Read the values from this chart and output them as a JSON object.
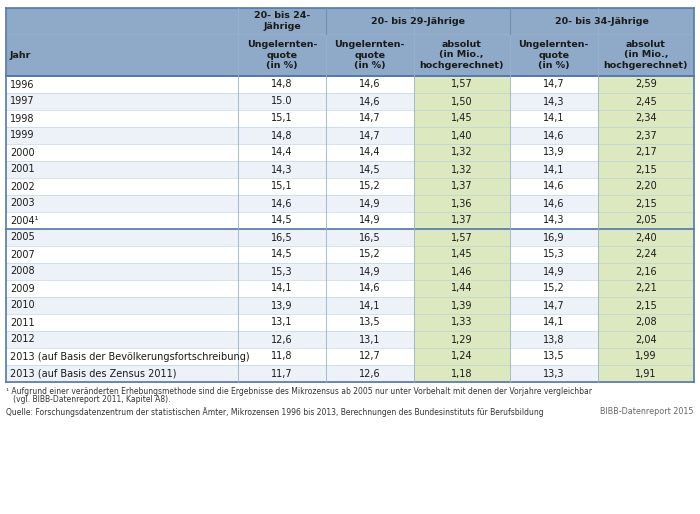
{
  "rows": [
    [
      "1996",
      "14,8",
      "14,6",
      "1,57",
      "14,7",
      "2,59"
    ],
    [
      "1997",
      "15.0",
      "14,6",
      "1,50",
      "14,3",
      "2,45"
    ],
    [
      "1998",
      "15,1",
      "14,7",
      "1,45",
      "14,1",
      "2,34"
    ],
    [
      "1999",
      "14,8",
      "14,7",
      "1,40",
      "14,6",
      "2,37"
    ],
    [
      "2000",
      "14,4",
      "14,4",
      "1,32",
      "13,9",
      "2,17"
    ],
    [
      "2001",
      "14,3",
      "14,5",
      "1,32",
      "14,1",
      "2,15"
    ],
    [
      "2002",
      "15,1",
      "15,2",
      "1,37",
      "14,6",
      "2,20"
    ],
    [
      "2003",
      "14,6",
      "14,9",
      "1,36",
      "14,6",
      "2,15"
    ],
    [
      "2004¹",
      "14,5",
      "14,9",
      "1,37",
      "14,3",
      "2,05"
    ],
    [
      "2005",
      "16,5",
      "16,5",
      "1,57",
      "16,9",
      "2,40"
    ],
    [
      "2007",
      "14,5",
      "15,2",
      "1,45",
      "15,3",
      "2,24"
    ],
    [
      "2008",
      "15,3",
      "14,9",
      "1,46",
      "14,9",
      "2,16"
    ],
    [
      "2009",
      "14,1",
      "14,6",
      "1,44",
      "15,2",
      "2,21"
    ],
    [
      "2010",
      "13,9",
      "14,1",
      "1,39",
      "14,7",
      "2,15"
    ],
    [
      "2011",
      "13,1",
      "13,5",
      "1,33",
      "14,1",
      "2,08"
    ],
    [
      "2012",
      "12,6",
      "13,1",
      "1,29",
      "13,8",
      "2,04"
    ],
    [
      "2013 (auf Basis der Bevölkerungsfortschreibung)",
      "11,8",
      "12,7",
      "1,24",
      "13,5",
      "1,99"
    ],
    [
      "2013 (auf Basis des Zensus 2011)",
      "11,7",
      "12,6",
      "1,18",
      "13,3",
      "1,91"
    ]
  ],
  "footnote1": "¹ Aufgrund einer veränderten Erhebungsmethode sind die Ergebnisse des Mikrozensus ab 2005 nur unter Vorbehalt mit denen der Vorjahre vergleichbar",
  "footnote2": "   (vgl. BIBB-Datenreport 2011, Kapitel A8).",
  "source": "Quelle: Forschungsdatenzentrum der statistischen Ämter, Mikrozensen 1996 bis 2013, Berechnungen des Bundesinstituts für Berufsbildung",
  "branding": "BIBB-Datenreport 2015",
  "color_header": "#8eaac8",
  "color_header_dark": "#5577aa",
  "color_green": "#dce8c0",
  "color_white": "#ffffff",
  "color_alt_row": "#edf2f8",
  "color_border_line": "#5577aa",
  "color_inner_line": "#b8cce0",
  "col_widths_rel": [
    2.65,
    1.0,
    1.0,
    1.1,
    1.0,
    1.1
  ],
  "h1_label_col1": "20- bis 24-\nJährige",
  "h1_label_col23": "20- bis 29-Jährige",
  "h1_label_col45": "20- bis 34-Jährige",
  "h2_labels": [
    "Jahr",
    "Ungelernten-\nquote\n(in %)",
    "Ungelernten-\nquote\n(in %)",
    "absolut\n(in Mio.,\nhochgerechnet)",
    "Ungelernten-\nquote\n(in %)",
    "absolut\n(in Mio.,\nhochgerechnet)"
  ],
  "fs_header": 6.8,
  "fs_data": 7.0,
  "fs_footnote": 5.5,
  "fs_source": 5.5,
  "fs_branding": 5.8
}
